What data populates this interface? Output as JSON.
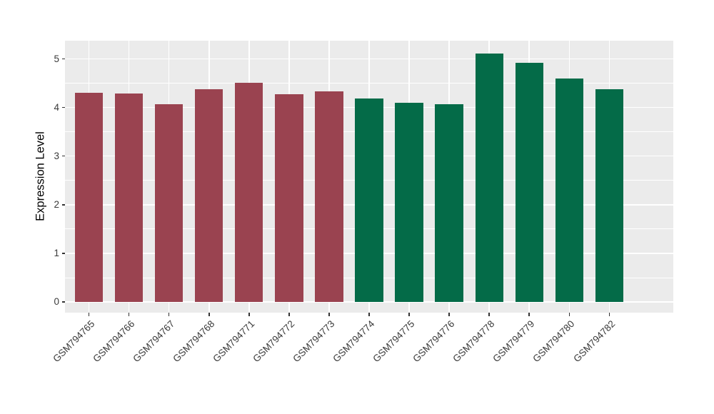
{
  "chart_data": {
    "type": "bar",
    "title": "",
    "xlabel": "",
    "ylabel": "Expression Level",
    "categories": [
      "GSM794765",
      "GSM794766",
      "GSM794767",
      "GSM794768",
      "GSM794771",
      "GSM794772",
      "GSM794773",
      "GSM794774",
      "GSM794775",
      "GSM794776",
      "GSM794778",
      "GSM794779",
      "GSM794780",
      "GSM794782"
    ],
    "values": [
      4.3,
      4.29,
      4.07,
      4.38,
      4.51,
      4.28,
      4.33,
      4.18,
      4.1,
      4.07,
      5.11,
      4.92,
      4.6,
      4.38
    ],
    "bar_color_names": [
      "red",
      "red",
      "red",
      "red",
      "red",
      "red",
      "red",
      "green",
      "green",
      "green",
      "green",
      "green",
      "green",
      "green"
    ],
    "yticks": [
      0,
      1,
      2,
      3,
      4,
      5
    ],
    "yticks_minor": [
      0.5,
      1.5,
      2.5,
      3.5,
      4.5
    ],
    "ylim": [
      -0.27,
      5.37
    ],
    "grid": "major and minor horizontal white gridlines, major vertical white gridlines at category centers, shown on gray panel",
    "legend": "none"
  },
  "style": {
    "colors": {
      "red": "#9A4350",
      "green": "#046B48"
    },
    "panel_bg": "#EBEBEB",
    "grid_color": "#FFFFFF",
    "axis_text_color": "#3a3a3a",
    "axis_title_color": "#000000",
    "tick_color": "#333333",
    "figure_bg": "#FFFFFF"
  }
}
